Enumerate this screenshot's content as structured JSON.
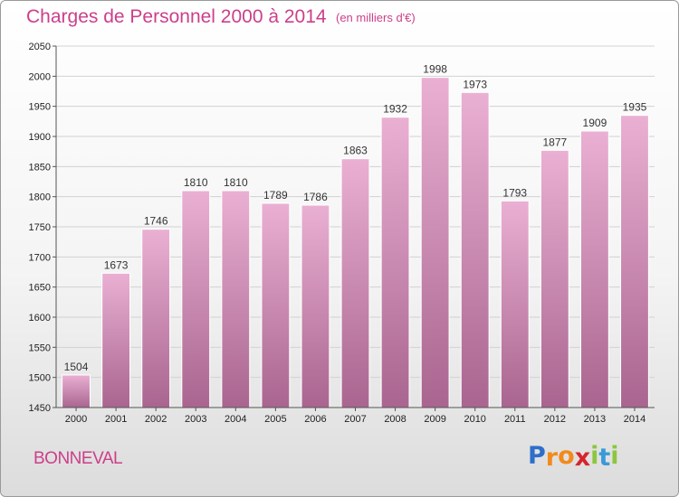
{
  "header": {
    "title": "Charges de Personnel 2000 à 2014",
    "subtitle": "(en milliers d'€)"
  },
  "footer": {
    "town": "BONNEVAL",
    "logo_letters": [
      "P",
      "r",
      "o",
      "x",
      "i",
      "t",
      "i"
    ],
    "logo_colors": [
      "#2d6fc9",
      "#f28a1c",
      "#f28a1c",
      "#d6252b",
      "#8cc63f",
      "#3a9ad9",
      "#8cc63f"
    ]
  },
  "colors": {
    "title": "#cc3f8a",
    "bar_top": "#eab0d3",
    "bar_bottom": "#a9658f",
    "grid": "#d2d2d2",
    "axis": "#555555"
  },
  "chart_data": {
    "type": "bar",
    "categories": [
      "2000",
      "2001",
      "2002",
      "2003",
      "2004",
      "2005",
      "2006",
      "2007",
      "2008",
      "2009",
      "2010",
      "2011",
      "2012",
      "2013",
      "2014"
    ],
    "values": [
      1504,
      1673,
      1746,
      1810,
      1810,
      1789,
      1786,
      1863,
      1932,
      1998,
      1973,
      1793,
      1877,
      1909,
      1935
    ],
    "ylim": [
      1450,
      2050
    ],
    "yticks": [
      1450,
      1500,
      1550,
      1600,
      1650,
      1700,
      1750,
      1800,
      1850,
      1900,
      1950,
      2000,
      2050
    ],
    "grid": true,
    "data_labels": true,
    "legend": "none"
  }
}
